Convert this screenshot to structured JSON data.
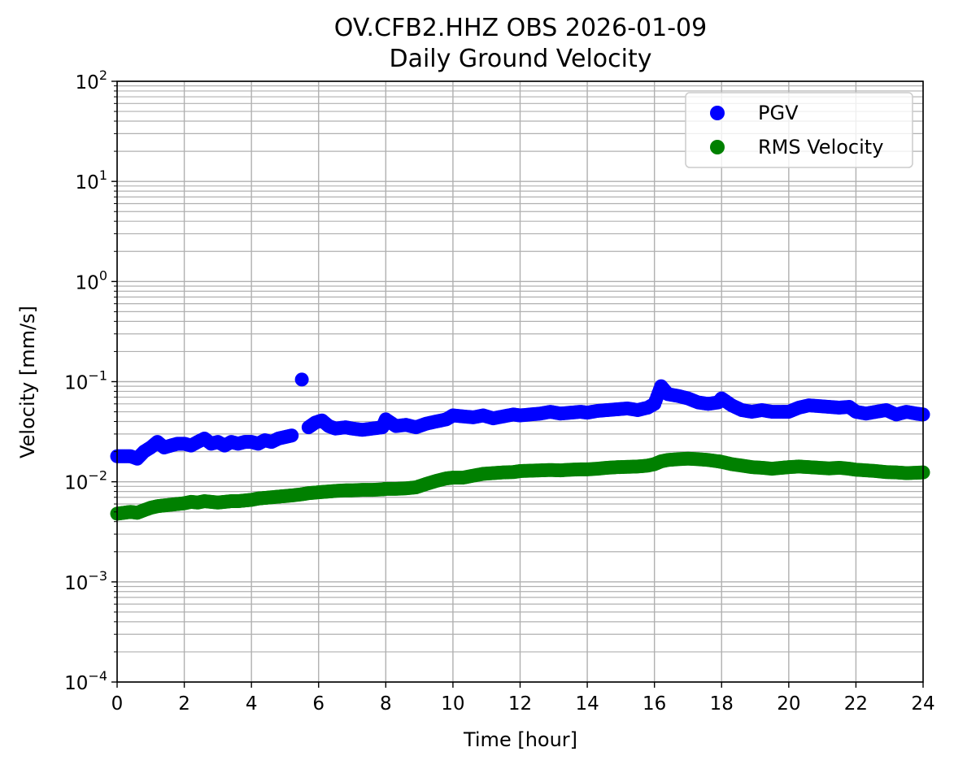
{
  "chart_data": {
    "type": "scatter",
    "title": "OV.CFB2.HHZ OBS 2026-01-09",
    "subtitle": "Daily Ground Velocity",
    "xlabel": "Time [hour]",
    "ylabel": "Velocity [mm/s]",
    "xlim": [
      0,
      24
    ],
    "ylim": [
      0.0001,
      100
    ],
    "y_scale": "log",
    "grid": true,
    "legend_position": "upper right",
    "x_ticks": [
      "0",
      "2",
      "4",
      "6",
      "8",
      "10",
      "12",
      "14",
      "16",
      "18",
      "20",
      "22",
      "24"
    ],
    "y_ticks": [
      {
        "value": 0.0001,
        "base": "10",
        "exp": "−4"
      },
      {
        "value": 0.001,
        "base": "10",
        "exp": "−3"
      },
      {
        "value": 0.01,
        "base": "10",
        "exp": "−2"
      },
      {
        "value": 0.1,
        "base": "10",
        "exp": "−1"
      },
      {
        "value": 1,
        "base": "10",
        "exp": "0"
      },
      {
        "value": 10,
        "base": "10",
        "exp": "1"
      },
      {
        "value": 100,
        "base": "10",
        "exp": "2"
      }
    ],
    "series": [
      {
        "name": "PGV",
        "color": "#0000ff",
        "x": [
          0.0,
          0.2,
          0.4,
          0.6,
          0.8,
          1.0,
          1.2,
          1.4,
          1.6,
          1.8,
          2.0,
          2.2,
          2.4,
          2.6,
          2.8,
          3.0,
          3.2,
          3.4,
          3.6,
          3.8,
          4.0,
          4.2,
          4.4,
          4.6,
          4.8,
          5.0,
          5.2,
          5.5,
          5.7,
          5.9,
          6.1,
          6.3,
          6.5,
          6.8,
          7.0,
          7.3,
          7.6,
          7.9,
          8.0,
          8.3,
          8.6,
          8.9,
          9.2,
          9.5,
          9.8,
          10.0,
          10.3,
          10.6,
          10.9,
          11.2,
          11.5,
          11.8,
          12.0,
          12.3,
          12.6,
          12.9,
          13.2,
          13.5,
          13.8,
          14.0,
          14.3,
          14.6,
          14.9,
          15.2,
          15.5,
          15.8,
          16.0,
          16.2,
          16.4,
          16.7,
          17.0,
          17.3,
          17.6,
          17.9,
          18.0,
          18.3,
          18.6,
          18.9,
          19.2,
          19.5,
          19.8,
          20.0,
          20.3,
          20.6,
          20.9,
          21.2,
          21.5,
          21.8,
          22.0,
          22.3,
          22.6,
          22.9,
          23.2,
          23.5,
          23.8,
          24.0
        ],
        "y": [
          0.018,
          0.018,
          0.018,
          0.017,
          0.02,
          0.022,
          0.025,
          0.022,
          0.023,
          0.024,
          0.024,
          0.023,
          0.025,
          0.027,
          0.024,
          0.025,
          0.023,
          0.025,
          0.024,
          0.025,
          0.025,
          0.024,
          0.026,
          0.025,
          0.027,
          0.028,
          0.029,
          0.105,
          0.035,
          0.039,
          0.041,
          0.036,
          0.034,
          0.035,
          0.034,
          0.033,
          0.034,
          0.035,
          0.042,
          0.036,
          0.037,
          0.035,
          0.038,
          0.04,
          0.042,
          0.046,
          0.045,
          0.044,
          0.046,
          0.043,
          0.045,
          0.047,
          0.046,
          0.047,
          0.048,
          0.05,
          0.048,
          0.049,
          0.05,
          0.049,
          0.051,
          0.052,
          0.053,
          0.054,
          0.052,
          0.055,
          0.06,
          0.09,
          0.075,
          0.072,
          0.068,
          0.062,
          0.06,
          0.062,
          0.068,
          0.058,
          0.052,
          0.05,
          0.052,
          0.05,
          0.05,
          0.05,
          0.055,
          0.058,
          0.057,
          0.056,
          0.055,
          0.056,
          0.05,
          0.048,
          0.05,
          0.052,
          0.047,
          0.05,
          0.048,
          0.047
        ]
      },
      {
        "name": "RMS Velocity",
        "color": "#008000",
        "x": [
          0.0,
          0.2,
          0.4,
          0.6,
          0.8,
          1.0,
          1.2,
          1.4,
          1.6,
          1.8,
          2.0,
          2.2,
          2.4,
          2.6,
          2.8,
          3.0,
          3.2,
          3.4,
          3.6,
          3.8,
          4.0,
          4.2,
          4.4,
          4.6,
          4.8,
          5.0,
          5.2,
          5.5,
          5.7,
          5.9,
          6.1,
          6.3,
          6.5,
          6.8,
          7.0,
          7.3,
          7.6,
          7.9,
          8.0,
          8.3,
          8.6,
          8.9,
          9.2,
          9.5,
          9.8,
          10.0,
          10.3,
          10.6,
          10.9,
          11.2,
          11.5,
          11.8,
          12.0,
          12.3,
          12.6,
          12.9,
          13.2,
          13.5,
          13.8,
          14.0,
          14.3,
          14.6,
          14.9,
          15.2,
          15.5,
          15.8,
          16.0,
          16.2,
          16.4,
          16.7,
          17.0,
          17.3,
          17.6,
          17.9,
          18.0,
          18.3,
          18.6,
          18.9,
          19.2,
          19.5,
          19.8,
          20.0,
          20.3,
          20.6,
          20.9,
          21.2,
          21.5,
          21.8,
          22.0,
          22.3,
          22.6,
          22.9,
          23.2,
          23.5,
          23.8,
          24.0
        ],
        "y": [
          0.0048,
          0.0049,
          0.005,
          0.0049,
          0.0052,
          0.0055,
          0.0057,
          0.0058,
          0.0059,
          0.006,
          0.0061,
          0.0063,
          0.0062,
          0.0064,
          0.0063,
          0.0062,
          0.0063,
          0.0064,
          0.0064,
          0.0065,
          0.0066,
          0.0068,
          0.0069,
          0.007,
          0.0071,
          0.0072,
          0.0073,
          0.0075,
          0.0077,
          0.0078,
          0.0079,
          0.008,
          0.0081,
          0.0082,
          0.0082,
          0.0083,
          0.0083,
          0.0084,
          0.0085,
          0.0085,
          0.0086,
          0.0088,
          0.0095,
          0.0102,
          0.0108,
          0.011,
          0.011,
          0.0115,
          0.012,
          0.0122,
          0.0124,
          0.0125,
          0.0128,
          0.0129,
          0.013,
          0.0131,
          0.013,
          0.0132,
          0.0133,
          0.0133,
          0.0135,
          0.0138,
          0.014,
          0.0141,
          0.0142,
          0.0145,
          0.015,
          0.016,
          0.0165,
          0.0168,
          0.017,
          0.0168,
          0.0165,
          0.016,
          0.0158,
          0.015,
          0.0145,
          0.014,
          0.0138,
          0.0135,
          0.0138,
          0.014,
          0.0142,
          0.014,
          0.0138,
          0.0136,
          0.0138,
          0.0135,
          0.0132,
          0.013,
          0.0128,
          0.0125,
          0.0124,
          0.0122,
          0.0123,
          0.0124
        ]
      }
    ]
  }
}
